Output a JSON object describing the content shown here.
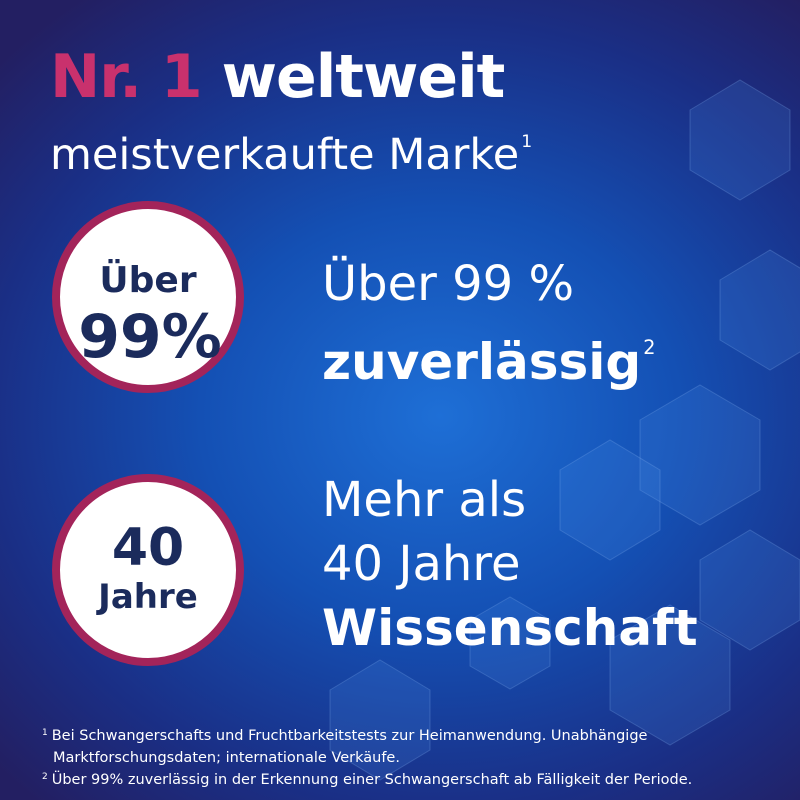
{
  "headline": {
    "highlight": "Nr. 1",
    "rest": "weltweit",
    "subline": "meistverkaufte Marke",
    "sup": "1"
  },
  "badges": [
    {
      "line1": "Über",
      "line2": "99%"
    },
    {
      "line1": "40",
      "line2": "Jahre"
    }
  ],
  "claims": [
    {
      "lines": [
        "Über 99 %",
        "zuverlässig"
      ],
      "sup": "2"
    },
    {
      "lines": [
        "Mehr als",
        "40 Jahre",
        "Wissenschaft"
      ]
    }
  ],
  "footnotes": [
    {
      "mark": "1",
      "text": "Bei Schwangerschafts und Fruchtbarkeitstests zur Heimanwendung. Unabhängige Marktforschungsdaten; internationale Verkäufe."
    },
    {
      "mark": "2",
      "text": "Über 99% zuverlässig in der Erkennung einer Schwangerschaft ab Fälligkeit der Periode."
    }
  ]
}
